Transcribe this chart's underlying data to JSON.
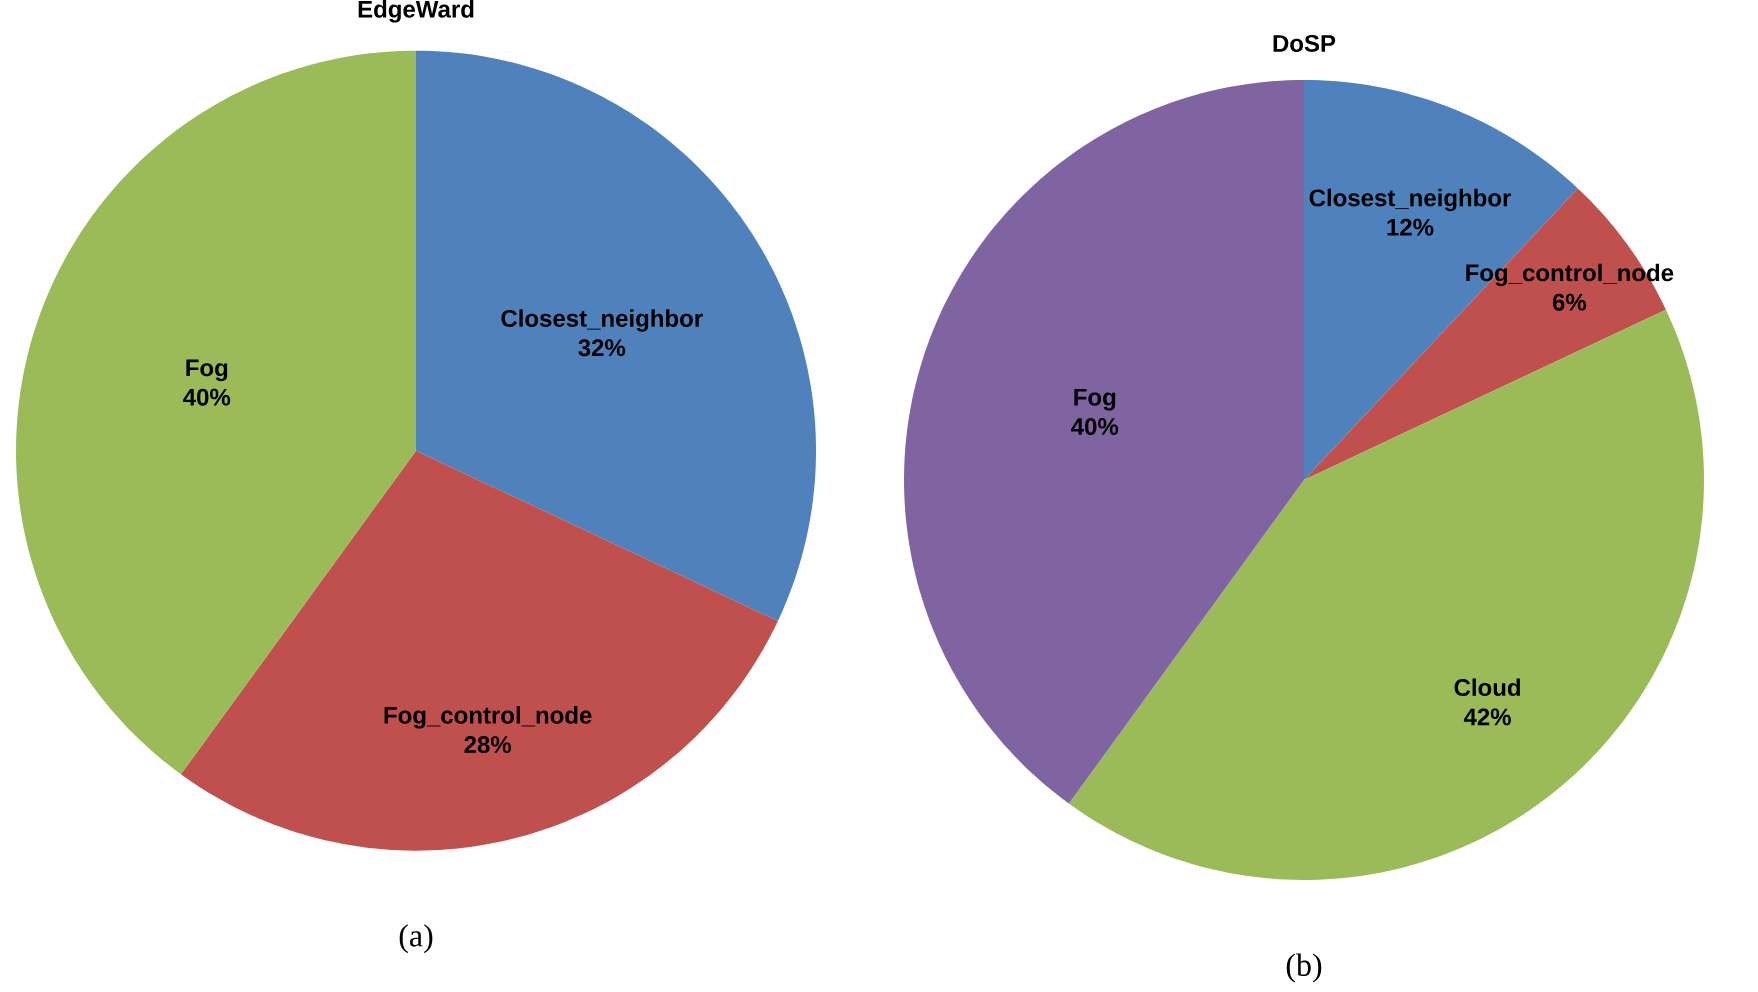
{
  "chart_data": [
    {
      "type": "pie",
      "title": "EdgeWard",
      "categories": [
        "Closest_neighbor",
        "Fog_control_node",
        "Fog"
      ],
      "values": [
        32,
        28,
        40
      ],
      "colors": [
        "#4f81bd",
        "#c0504d",
        "#9bbb59"
      ],
      "value_labels": [
        "32%",
        "28%",
        "40%"
      ],
      "annotations": [
        "(a)"
      ]
    },
    {
      "type": "pie",
      "title": "DoSP",
      "categories": [
        "Closest_neighbor",
        "Fog_control_node",
        "Cloud",
        "Fog"
      ],
      "values": [
        12,
        6,
        42,
        40
      ],
      "colors": [
        "#4f81bd",
        "#c0504d",
        "#9bbb59",
        "#8064a2"
      ],
      "value_labels": [
        "12%",
        "6%",
        "42%",
        "40%"
      ],
      "annotations": [
        "(b)"
      ]
    }
  ]
}
